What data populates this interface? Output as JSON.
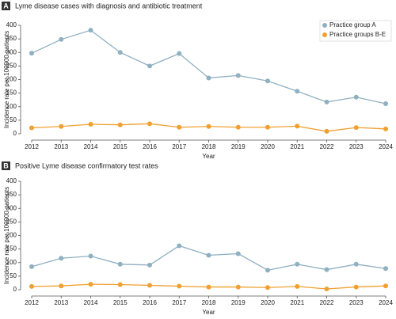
{
  "chart_data": [
    {
      "type": "line",
      "panel_label": "A",
      "title": "Lyme disease cases with diagnosis and antibiotic treatment",
      "categories": [
        "2012",
        "2013",
        "2014",
        "2015",
        "2016",
        "2017",
        "2018",
        "2019",
        "2020",
        "2021",
        "2022",
        "2023",
        "2024"
      ],
      "series": [
        {
          "name": "Practice group A",
          "color": "#8fb0c0",
          "values": [
            297,
            348,
            382,
            300,
            250,
            296,
            206,
            215,
            195,
            157,
            117,
            135,
            111
          ]
        },
        {
          "name": "Practice groups B-E",
          "color": "#f0a030",
          "values": [
            22,
            27,
            35,
            33,
            37,
            24,
            27,
            24,
            24,
            28,
            9,
            23,
            18
          ]
        }
      ],
      "ylim": [
        0,
        400
      ],
      "yticks": [
        0,
        50,
        100,
        150,
        200,
        250,
        300,
        350,
        400
      ],
      "x_label": "Year",
      "y_label": "Incidence rate per 100000 patients",
      "legend": "upper right"
    },
    {
      "type": "line",
      "panel_label": "B",
      "title": "Positive Lyme disease confirmatory test rates",
      "categories": [
        "2012",
        "2013",
        "2014",
        "2015",
        "2016",
        "2017",
        "2018",
        "2019",
        "2020",
        "2021",
        "2022",
        "2023",
        "2024"
      ],
      "series": [
        {
          "color": "#8fb0c0",
          "values": [
            85,
            116,
            124,
            94,
            91,
            162,
            127,
            133,
            72,
            94,
            74,
            94,
            78
          ]
        },
        {
          "color": "#f0a030",
          "values": [
            12,
            14,
            20,
            19,
            16,
            13,
            10,
            10,
            8,
            12,
            3,
            10,
            14
          ]
        }
      ],
      "ylim": [
        0,
        400
      ],
      "yticks": [
        0,
        50,
        100,
        150,
        200,
        250,
        300,
        350,
        400
      ],
      "x_label": "Year",
      "y_label": "Incidence rate per 100000 patients"
    }
  ]
}
